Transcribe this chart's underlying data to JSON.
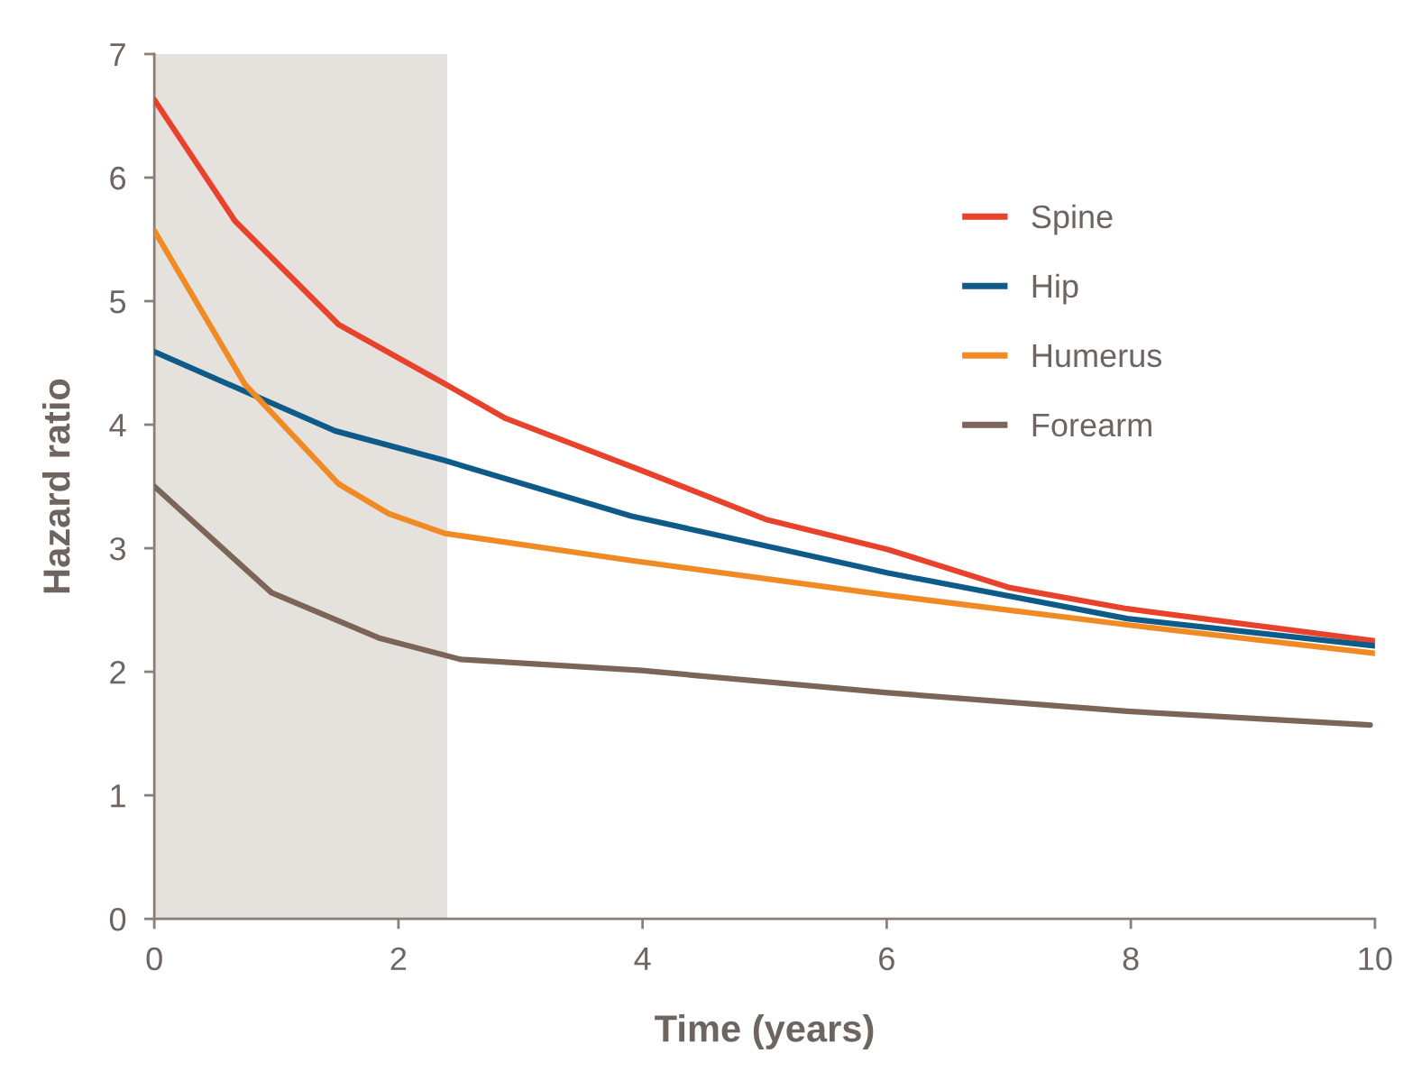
{
  "chart_data": {
    "type": "line",
    "xlabel": "Time (years)",
    "ylabel": "Hazard ratio",
    "xlim": [
      0,
      10
    ],
    "ylim": [
      0,
      7
    ],
    "xticks": [
      0,
      2,
      4,
      6,
      8,
      10
    ],
    "yticks": [
      0,
      1,
      2,
      3,
      4,
      5,
      6,
      7
    ],
    "grid": false,
    "legend": "top right",
    "line_style": "solid",
    "marker": "none",
    "bands": [
      {
        "axis": "x",
        "from": 0,
        "to": 2.4,
        "color": "#e5e1dd"
      }
    ],
    "series": [
      {
        "name": "Spine",
        "color": "#e8412c",
        "x": [
          0,
          0.66,
          1.51,
          2.38,
          2.88,
          3.99,
          5.02,
          6.01,
          7.01,
          7.97,
          10
        ],
        "values": [
          6.63,
          5.65,
          4.81,
          4.33,
          4.05,
          3.63,
          3.23,
          2.99,
          2.68,
          2.51,
          2.25
        ]
      },
      {
        "name": "Hip",
        "color": "#0e5b8a",
        "x": [
          0,
          1.48,
          2.38,
          3.91,
          6.01,
          7.97,
          10
        ],
        "values": [
          4.59,
          3.95,
          3.71,
          3.26,
          2.8,
          2.43,
          2.21
        ]
      },
      {
        "name": "Humerus",
        "color": "#f08a24",
        "x": [
          0,
          0.74,
          1.51,
          1.92,
          2.38,
          3.91,
          6.01,
          7.97,
          10
        ],
        "values": [
          5.57,
          4.33,
          3.52,
          3.28,
          3.12,
          2.9,
          2.62,
          2.38,
          2.15
        ]
      },
      {
        "name": "Forearm",
        "color": "#7a6558",
        "x": [
          0,
          0.96,
          1.85,
          2.51,
          3.99,
          6.01,
          7.97,
          9.96
        ],
        "values": [
          3.5,
          2.64,
          2.27,
          2.1,
          2.01,
          1.83,
          1.68,
          1.57
        ]
      }
    ]
  }
}
